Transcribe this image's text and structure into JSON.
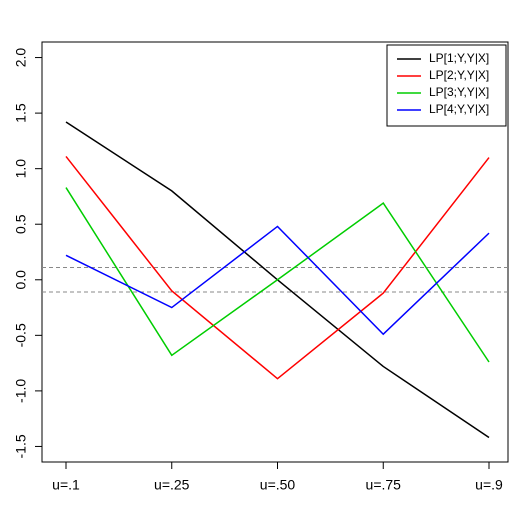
{
  "chart_data": {
    "type": "line",
    "categories": [
      "u=.1",
      "u=.25",
      "u=.50",
      "u=.75",
      "u=.9"
    ],
    "series": [
      {
        "name": "LP[1;Y,Y|X]",
        "color": "#000000",
        "values": [
          1.42,
          0.8,
          0.0,
          -0.78,
          -1.42
        ]
      },
      {
        "name": "LP[2;Y,Y|X]",
        "color": "#ff0000",
        "values": [
          1.11,
          -0.1,
          -0.89,
          -0.12,
          1.1
        ]
      },
      {
        "name": "LP[3;Y,Y|X]",
        "color": "#00cd00",
        "values": [
          0.83,
          -0.68,
          0.0,
          0.69,
          -0.74
        ]
      },
      {
        "name": "LP[4;Y,Y|X]",
        "color": "#0000ff",
        "values": [
          0.22,
          -0.25,
          0.48,
          -0.49,
          0.42
        ]
      }
    ],
    "ylim": [
      -1.64,
      2.14
    ],
    "yticks": [
      {
        "value": -1.5,
        "label": "-1.5"
      },
      {
        "value": -1.0,
        "label": "-1.0"
      },
      {
        "value": -0.5,
        "label": "-0.5"
      },
      {
        "value": 0.0,
        "label": "0.0"
      },
      {
        "value": 0.5,
        "label": "0.5"
      },
      {
        "value": 1.0,
        "label": "1.0"
      },
      {
        "value": 1.5,
        "label": "1.5"
      },
      {
        "value": 2.0,
        "label": "2.0"
      }
    ],
    "reference_lines": [
      0.11,
      -0.11
    ],
    "legend": "top-right"
  }
}
